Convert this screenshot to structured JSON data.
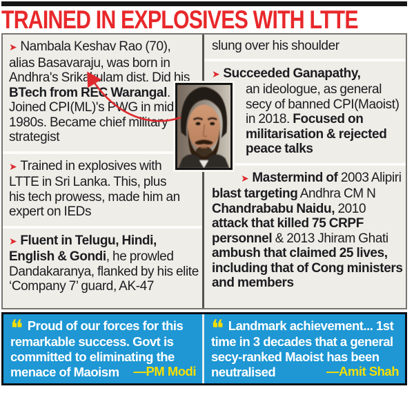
{
  "headline": "TRAINED IN EXPLOSIVES WITH LTTE",
  "icons": {
    "bullet": "➤",
    "quote": "❝"
  },
  "colors": {
    "headline_red": "#e8282b",
    "accent_red": "#dc2a2e",
    "box_bg": "#efede7",
    "quote_blue": "#1e97d4",
    "highlight_yellow": "#f7df00"
  },
  "facts": {
    "left": [
      {
        "segments": [
          {
            "t": "Nambala Keshav Rao (70), alias Basavaraju, was born in Andhra's Srikakulam dist. Did his "
          },
          {
            "t": "BTech from REC Warangal",
            "b": true
          },
          {
            "t": ". Joined CPI(ML)'s PWG in mid-1980s. Became chief military strategist"
          }
        ]
      },
      {
        "segments": [
          {
            "t": "Trained in explosives with LTTE in Sri Lanka. This, plus his tech prowess, made him an expert on IEDs"
          }
        ]
      },
      {
        "segments": [
          {
            "t": "Fluent in Telugu, Hindi, English & Gondi",
            "b": true
          },
          {
            "t": ", he prowled Dandakaranya, flanked by his elite ‘Company 7’ guard, AK-47"
          }
        ]
      }
    ],
    "right": {
      "continuation": "slung over his shoulder",
      "succeeded_first": [
        {
          "t": "Succeeded Ganapathy,",
          "b": true
        }
      ],
      "succeeded_rest": [
        {
          "t": "an ideologue, as general secy of banned CPI(Maoist) in 2018. "
        },
        {
          "t": "Focused on militarisation & rejected peace talks",
          "b": true
        }
      ],
      "mastermind": [
        {
          "t": "Mastermind of",
          "b": true
        },
        {
          "t": " 2003 Alipiri "
        },
        {
          "t": "blast targeting",
          "b": true
        },
        {
          "t": " Andhra CM N "
        },
        {
          "t": "Chandrababu Naidu,",
          "b": true
        },
        {
          "t": " 2010 "
        },
        {
          "t": "attack that killed 75 CRPF personnel",
          "b": true
        },
        {
          "t": " & 2013 Jhiram Ghati "
        },
        {
          "t": "ambush that claimed 25 lives, including that of Cong ministers and members",
          "b": true
        }
      ]
    }
  },
  "quotes": [
    {
      "text": "Proud of our forces for this remarkable success. Govt is committed to eliminating the menace of Maoism",
      "attribution": "—PM Modi"
    },
    {
      "text": "Landmark achievement... 1st time in 3 decades that a general secy-ranked Maoist has been neutralised",
      "attribution": "—Amit Shah"
    }
  ]
}
